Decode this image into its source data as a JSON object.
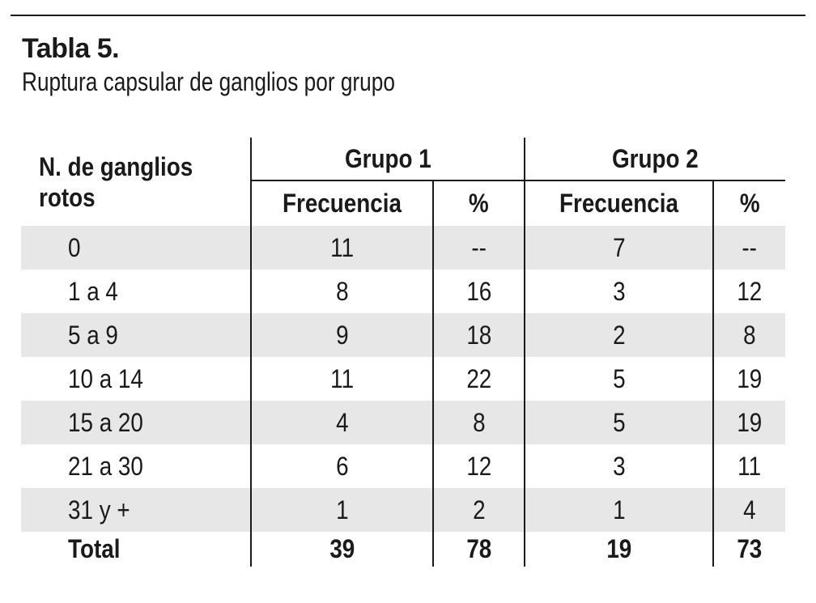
{
  "page": {
    "title": "Tabla 5.",
    "subtitle": "Ruptura capsular de ganglios por grupo"
  },
  "table": {
    "row_header": {
      "line1": "N. de ganglios",
      "line2": "rotos"
    },
    "groups": [
      {
        "label": "Grupo 1",
        "columns": [
          "Frecuencia",
          "%"
        ]
      },
      {
        "label": "Grupo 2",
        "columns": [
          "Frecuencia",
          "%"
        ]
      }
    ],
    "rows": [
      {
        "label": "0",
        "values": [
          "11",
          "--",
          "7",
          "--"
        ]
      },
      {
        "label": "1 a 4",
        "values": [
          "8",
          "16",
          "3",
          "12"
        ]
      },
      {
        "label": "5 a 9",
        "values": [
          "9",
          "18",
          "2",
          "8"
        ]
      },
      {
        "label": "10 a 14",
        "values": [
          "11",
          "22",
          "5",
          "19"
        ]
      },
      {
        "label": "15 a 20",
        "values": [
          "4",
          "8",
          "5",
          "19"
        ]
      },
      {
        "label": "21 a 30",
        "values": [
          "6",
          "12",
          "3",
          "11"
        ]
      },
      {
        "label": "31 y +",
        "values": [
          "1",
          "2",
          "1",
          "4"
        ]
      }
    ],
    "total_row": {
      "label": "Total",
      "values": [
        "39",
        "78",
        "19",
        "73"
      ]
    }
  },
  "colors": {
    "ink": "#1a1a1a",
    "stripe": "#e7e7e7"
  }
}
